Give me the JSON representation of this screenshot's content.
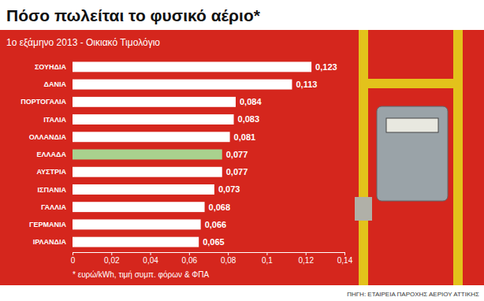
{
  "chart_data": {
    "type": "bar",
    "orientation": "horizontal",
    "title": "Πόσο πωλείται το φυσικό αέριο*",
    "subtitle": "1ο εξάμηνο 2013 - Οικιακό Τιμολόγιο",
    "categories": [
      "ΣΟΥΗΔΙΑ",
      "ΔΑΝΙΑ",
      "ΠΟΡΤΟΓΑΛΙΑ",
      "ΙΤΑΛΙΑ",
      "ΟΛΛΑΝΔΙΑ",
      "ΕΛΛΑΔΑ",
      "ΑΥΣΤΡΙΑ",
      "ΙΣΠΑΝΙΑ",
      "ΓΑΛΛΙΑ",
      "ΓΕΡΜΑΝΙΑ",
      "ΙΡΛΑΝΔΙΑ"
    ],
    "values": [
      0.123,
      0.113,
      0.084,
      0.083,
      0.081,
      0.077,
      0.077,
      0.073,
      0.068,
      0.066,
      0.065
    ],
    "value_labels": [
      "0,123",
      "0,113",
      "0,084",
      "0,083",
      "0,081",
      "0,077",
      "0,077",
      "0,073",
      "0,068",
      "0,066",
      "0,065"
    ],
    "colors": [
      "#ffffff",
      "#ffffff",
      "#ffffff",
      "#ffffff",
      "#ffffff",
      "#a9d18e",
      "#ffffff",
      "#ffffff",
      "#ffffff",
      "#ffffff",
      "#ffffff"
    ],
    "data_labels": true,
    "xlim": [
      0,
      0.14
    ],
    "xticks": [
      0,
      {
        "value": 0.02,
        "label": "0,02"
      },
      {
        "value": 0.04,
        "label": "0,04"
      },
      {
        "value": 0.06,
        "label": "0,06"
      },
      {
        "value": 0.08,
        "label": "0,08"
      },
      {
        "value": 0.1,
        "label": "0,1"
      },
      {
        "value": 0.12,
        "label": "0,12"
      },
      {
        "value": 0.14,
        "label": "0,14"
      }
    ],
    "annotations": [
      "* ευρώ/kWh, τιμή συμπ. φόρων & ΦΠΑ",
      "ΠΗΓΗ: ΕΤΑΙΡΕΙΑ ΠΑΡΟΧΗΣ ΑΕΡΙΟΥ ΑΤΤΙΚΗΣ"
    ]
  }
}
